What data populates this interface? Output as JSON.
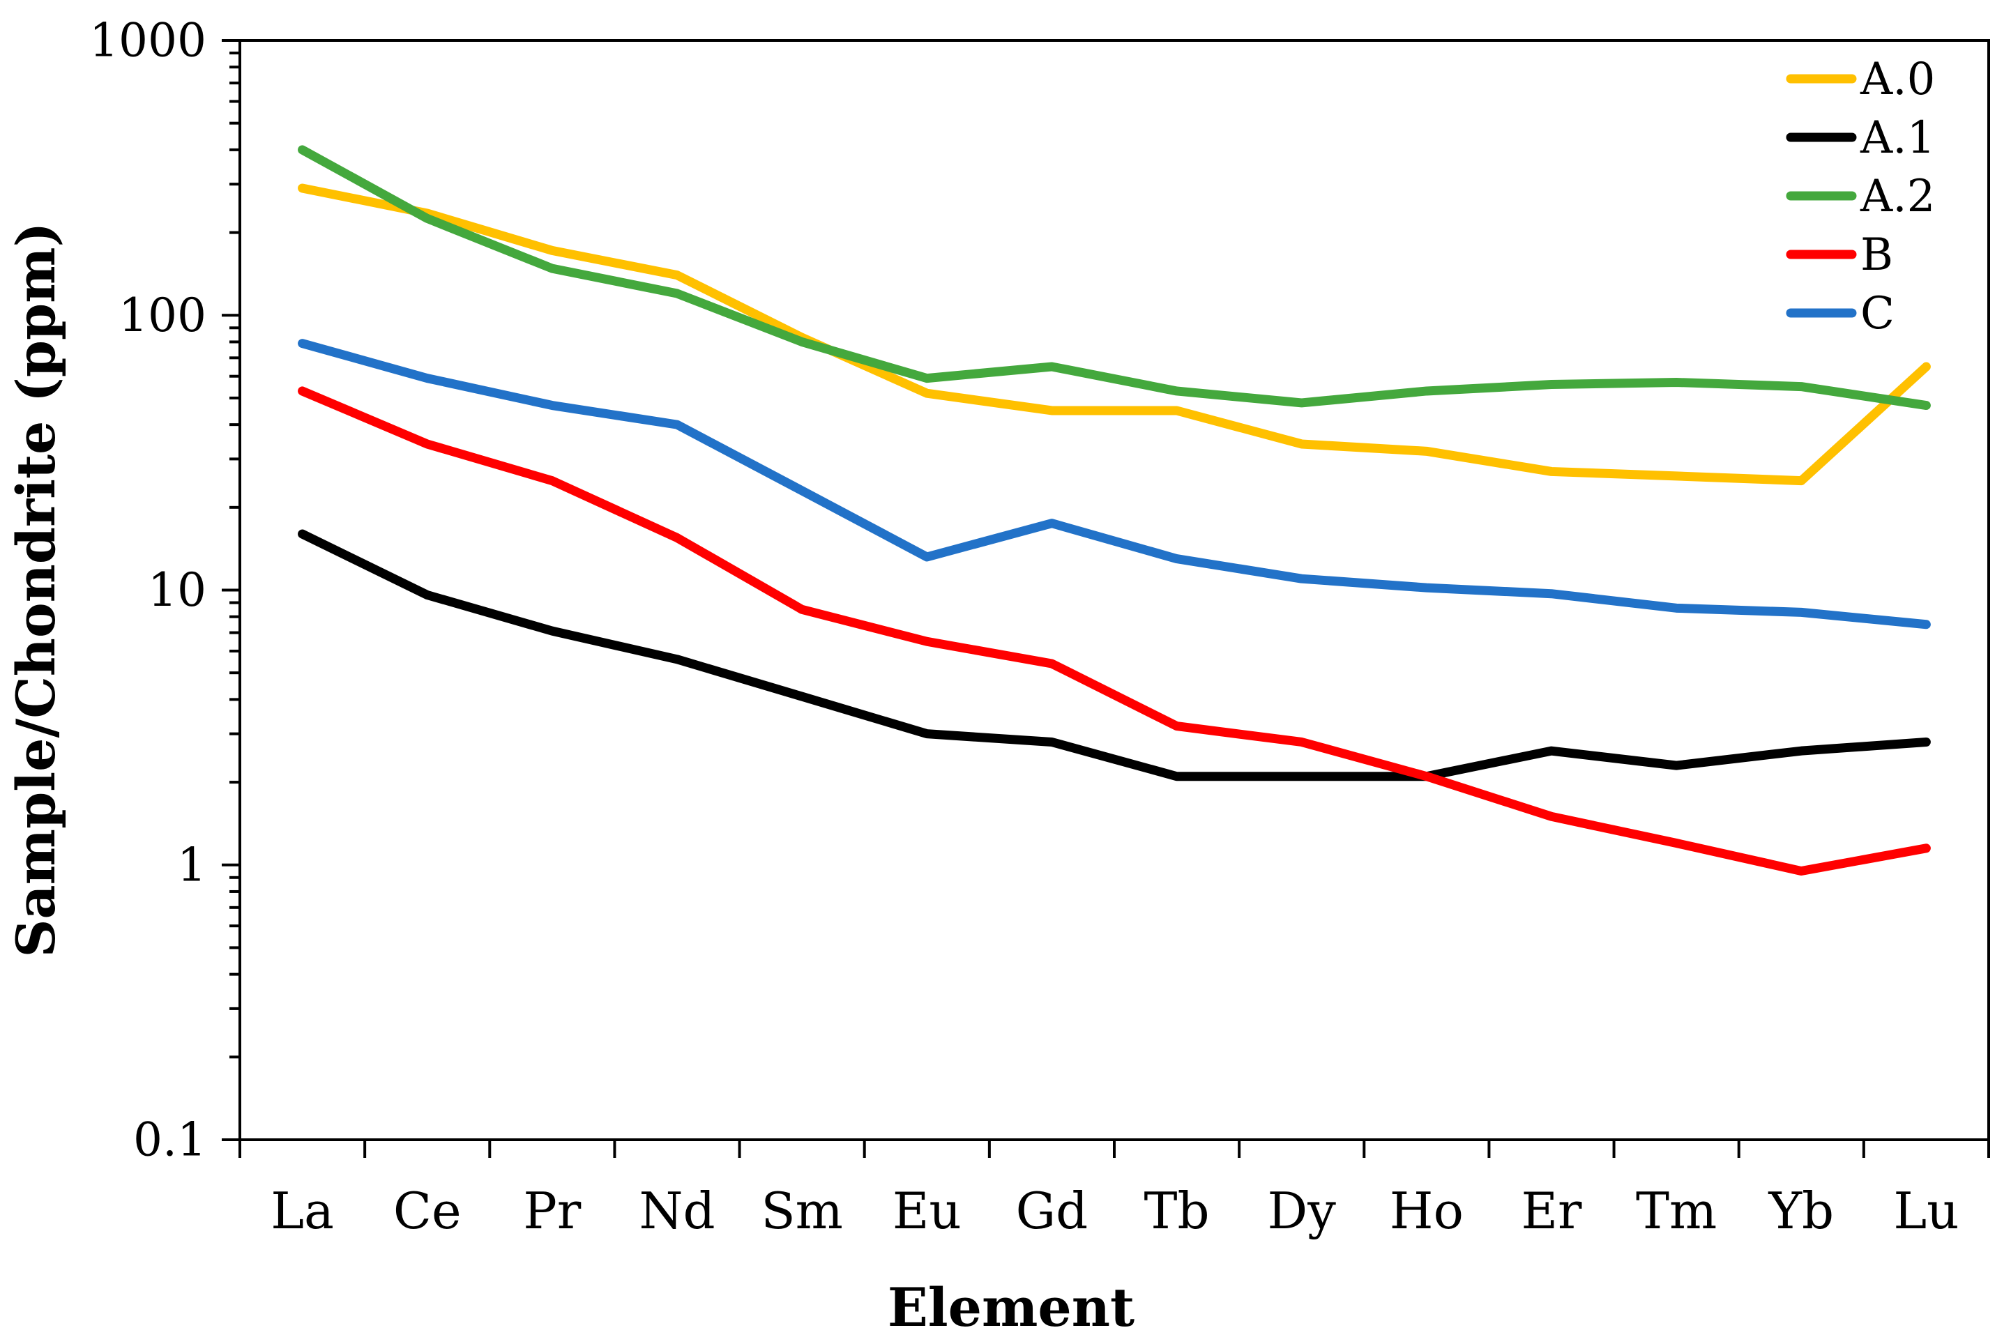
{
  "figure": {
    "background": "#ffffff",
    "border_color": "#000000"
  },
  "y_axis": {
    "title": "Sample/Chondrite (ppm)",
    "scale": "log",
    "major_tick_labels": [
      "1000",
      "100",
      "10",
      "1",
      "0.1"
    ],
    "min": 0.1,
    "max": 1000
  },
  "x_axis": {
    "title": "Element"
  },
  "legend": {
    "position": "top-right",
    "entries": [
      {
        "label": "A.0",
        "color": "#FFC000"
      },
      {
        "label": "A.1",
        "color": "#000000"
      },
      {
        "label": "A.2",
        "color": "#44A83D"
      },
      {
        "label": "B",
        "color": "#FF0000"
      },
      {
        "label": "C",
        "color": "#2272C8"
      }
    ]
  },
  "chart_data": {
    "type": "line",
    "title": "",
    "xlabel": "Element",
    "ylabel": "Sample/Chondrite (ppm)",
    "y_scale": "log",
    "ylim": [
      0.1,
      1000
    ],
    "grid": false,
    "legend_position": "top-right",
    "x_categories": [
      "La",
      "Ce",
      "Pr",
      "Nd",
      "Sm",
      "Eu",
      "Gd",
      "Tb",
      "Dy",
      "Ho",
      "Er",
      "Tm",
      "Yb",
      "Lu"
    ],
    "series": [
      {
        "name": "A.0",
        "color": "#FFC000",
        "values": [
          290,
          235,
          172,
          140,
          83,
          52,
          45,
          45,
          34,
          32,
          27,
          26,
          25,
          65
        ]
      },
      {
        "name": "A.1",
        "color": "#000000",
        "values": [
          16,
          9.6,
          7.1,
          5.6,
          4.1,
          3.0,
          2.8,
          2.1,
          2.1,
          2.1,
          2.6,
          2.3,
          2.6,
          2.8
        ]
      },
      {
        "name": "A.2",
        "color": "#44A83D",
        "values": [
          400,
          225,
          148,
          120,
          80,
          59,
          65,
          53,
          48,
          53,
          56,
          57,
          55,
          47
        ]
      },
      {
        "name": "B",
        "color": "#FF0000",
        "values": [
          53,
          34,
          25,
          15.5,
          8.5,
          6.5,
          5.4,
          3.2,
          2.8,
          2.1,
          1.5,
          1.2,
          0.95,
          1.15
        ]
      },
      {
        "name": "C",
        "color": "#2272C8",
        "values": [
          79,
          59,
          47,
          40,
          23,
          13.2,
          17.5,
          13,
          11,
          10.2,
          9.7,
          8.6,
          8.3,
          7.5
        ]
      }
    ]
  }
}
